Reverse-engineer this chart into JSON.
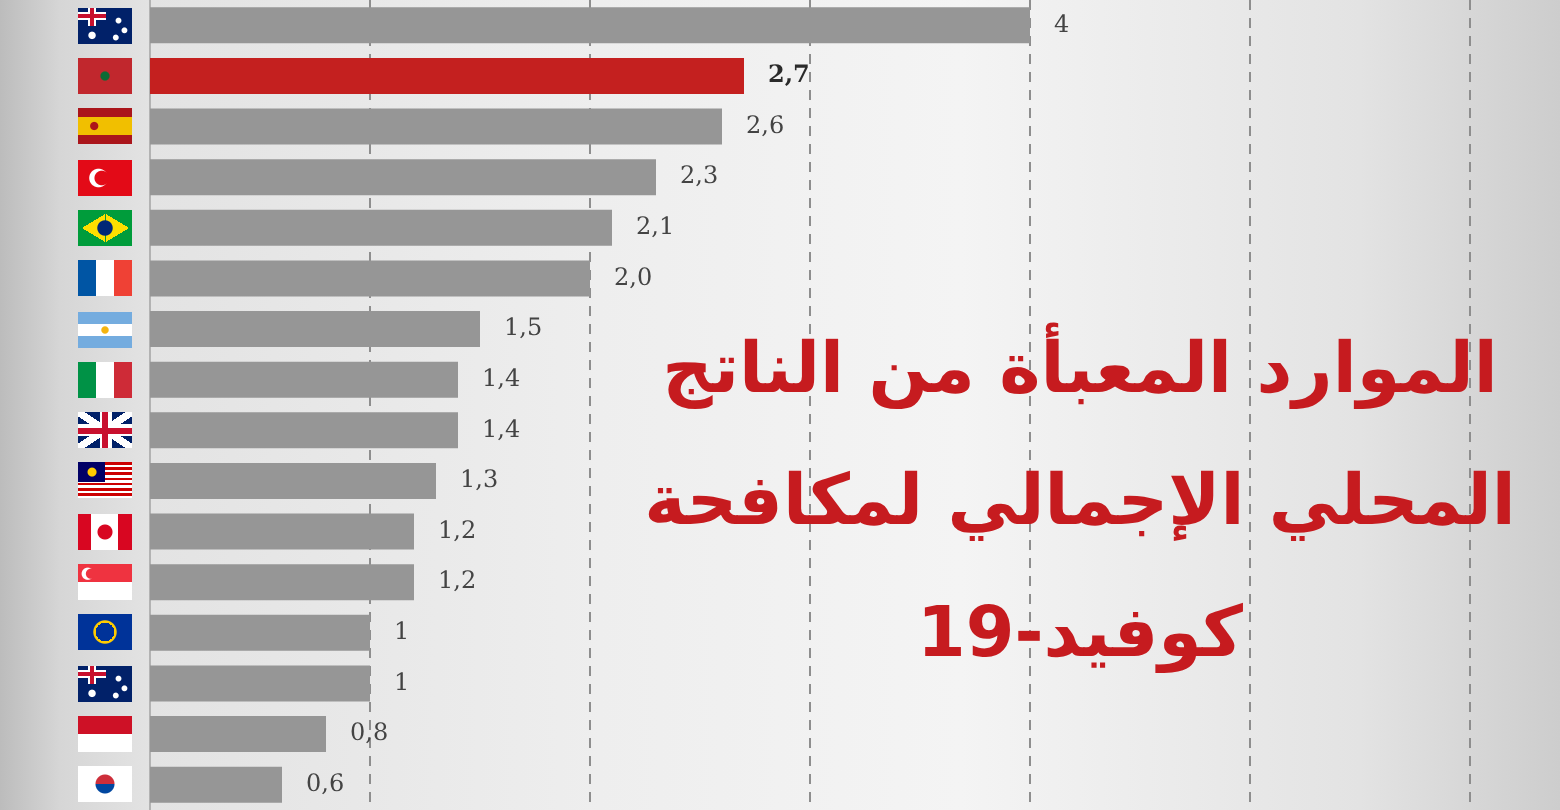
{
  "chart_data": {
    "type": "bar",
    "orientation": "horizontal",
    "title": "الموارد المعبأة من الناتج المحلي الإجمالي لمكافحة كوفيد-19",
    "categories": [
      null,
      null,
      null,
      null,
      null,
      null,
      null,
      null,
      null,
      null,
      null,
      null,
      null,
      null,
      null,
      null
    ],
    "values": [
      4,
      2.7,
      2.6,
      2.3,
      2.1,
      2.0,
      1.5,
      1.4,
      1.4,
      1.3,
      1.2,
      1.2,
      1,
      1,
      0.8,
      0.6
    ],
    "colors": [
      "#969696",
      "#c4201f",
      "#969696",
      "#969696",
      "#969696",
      "#969696",
      "#969696",
      "#969696",
      "#969696",
      "#969696",
      "#969696",
      "#969696",
      "#969696",
      "#969696",
      "#969696",
      "#969696"
    ],
    "value_labels": [
      "4",
      "2,7",
      "2,6",
      "2,3",
      "2,1",
      "2,0",
      "1,5",
      "1,4",
      "1,4",
      "1,3",
      "1,2",
      "1,2",
      "1",
      "1",
      "0,8",
      "0,6"
    ],
    "xticks": [
      {
        "value": 1,
        "label": null
      },
      {
        "value": 2,
        "label": null
      },
      {
        "value": 3,
        "label": null
      },
      {
        "value": 4,
        "label": null
      },
      {
        "value": 5,
        "label": null
      },
      {
        "value": 6,
        "label": null
      }
    ],
    "grid": "x",
    "tick_labels": false
  }
}
